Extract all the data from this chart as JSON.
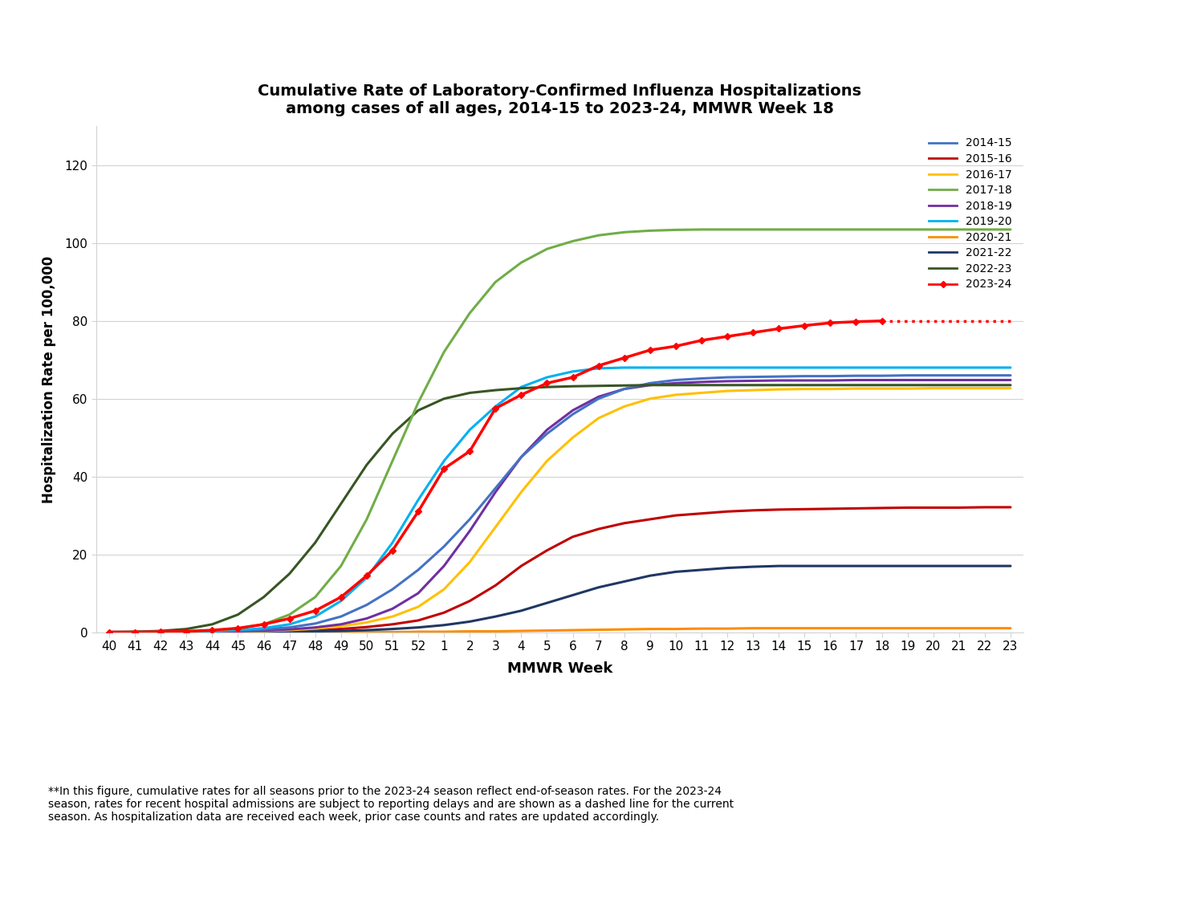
{
  "title_line1": "Cumulative Rate of Laboratory-Confirmed Influenza Hospitalizations",
  "title_line2": "among cases of all ages, 2014-15 to 2023-24, MMWR Week 18",
  "xlabel": "MMWR Week",
  "ylabel": "Hospitalization Rate per 100,000",
  "footnote": "**In this figure, cumulative rates for all seasons prior to the 2023-24 season reflect end-of-season rates. For the 2023-24\nseason, rates for recent hospital admissions are subject to reporting delays and are shown as a dashed line for the current\nseason. As hospitalization data are received each week, prior case counts and rates are updated accordingly.",
  "x_tick_labels": [
    "40",
    "41",
    "42",
    "43",
    "44",
    "45",
    "46",
    "47",
    "48",
    "49",
    "50",
    "51",
    "52",
    "1",
    "2",
    "3",
    "4",
    "5",
    "6",
    "7",
    "8",
    "9",
    "10",
    "11",
    "12",
    "13",
    "14",
    "15",
    "16",
    "17",
    "18",
    "19",
    "20",
    "21",
    "22",
    "23"
  ],
  "ylim": [
    0,
    130
  ],
  "yticks": [
    0,
    20,
    40,
    60,
    80,
    100,
    120
  ],
  "seasons": {
    "2014-15": {
      "color": "#4472C4",
      "values": [
        0.0,
        0.0,
        0.0,
        0.1,
        0.2,
        0.4,
        0.7,
        1.2,
        2.2,
        4.0,
        7.0,
        11.0,
        16.0,
        22.0,
        29.0,
        37.0,
        45.0,
        51.0,
        56.0,
        60.0,
        62.5,
        64.0,
        64.8,
        65.2,
        65.5,
        65.6,
        65.7,
        65.8,
        65.8,
        65.9,
        65.9,
        66.0,
        66.0,
        66.0,
        66.0,
        66.0
      ]
    },
    "2015-16": {
      "color": "#C00000",
      "values": [
        0.0,
        0.0,
        0.0,
        0.0,
        0.1,
        0.1,
        0.2,
        0.3,
        0.5,
        0.8,
        1.3,
        2.0,
        3.0,
        5.0,
        8.0,
        12.0,
        17.0,
        21.0,
        24.5,
        26.5,
        28.0,
        29.0,
        30.0,
        30.5,
        31.0,
        31.3,
        31.5,
        31.6,
        31.7,
        31.8,
        31.9,
        32.0,
        32.0,
        32.0,
        32.1,
        32.1
      ]
    },
    "2016-17": {
      "color": "#FFC000",
      "values": [
        0.0,
        0.0,
        0.0,
        0.0,
        0.1,
        0.2,
        0.3,
        0.5,
        0.9,
        1.5,
        2.5,
        4.0,
        6.5,
        11.0,
        18.0,
        27.0,
        36.0,
        44.0,
        50.0,
        55.0,
        58.0,
        60.0,
        61.0,
        61.5,
        62.0,
        62.2,
        62.4,
        62.5,
        62.5,
        62.6,
        62.6,
        62.6,
        62.7,
        62.7,
        62.7,
        62.7
      ]
    },
    "2017-18": {
      "color": "#70AD47",
      "values": [
        0.0,
        0.0,
        0.1,
        0.2,
        0.4,
        0.9,
        2.0,
        4.5,
        9.0,
        17.0,
        29.0,
        44.0,
        59.0,
        72.0,
        82.0,
        90.0,
        95.0,
        98.5,
        100.5,
        102.0,
        102.8,
        103.2,
        103.4,
        103.5,
        103.5,
        103.5,
        103.5,
        103.5,
        103.5,
        103.5,
        103.5,
        103.5,
        103.5,
        103.5,
        103.5,
        103.5
      ]
    },
    "2018-19": {
      "color": "#7030A0",
      "values": [
        0.0,
        0.0,
        0.0,
        0.0,
        0.1,
        0.2,
        0.4,
        0.7,
        1.2,
        2.0,
        3.5,
        6.0,
        10.0,
        17.0,
        26.0,
        36.0,
        45.0,
        52.0,
        57.0,
        60.5,
        62.5,
        63.5,
        64.0,
        64.3,
        64.5,
        64.6,
        64.7,
        64.7,
        64.7,
        64.8,
        64.8,
        64.8,
        64.8,
        64.8,
        64.8,
        64.8
      ]
    },
    "2019-20": {
      "color": "#00B0F0",
      "values": [
        0.0,
        0.0,
        0.0,
        0.1,
        0.2,
        0.5,
        1.0,
        2.0,
        4.0,
        8.0,
        14.0,
        23.0,
        34.0,
        44.0,
        52.0,
        58.0,
        63.0,
        65.5,
        67.0,
        67.8,
        68.0,
        68.0,
        68.0,
        68.0,
        68.0,
        68.0,
        68.0,
        68.0,
        68.0,
        68.0,
        68.0,
        68.0,
        68.0,
        68.0,
        68.0,
        68.0
      ]
    },
    "2020-21": {
      "color": "#FF8C00",
      "values": [
        0.0,
        0.0,
        0.0,
        0.0,
        0.0,
        0.0,
        0.0,
        0.0,
        0.0,
        0.0,
        0.0,
        0.0,
        0.1,
        0.1,
        0.2,
        0.2,
        0.3,
        0.4,
        0.5,
        0.6,
        0.7,
        0.8,
        0.8,
        0.9,
        0.9,
        1.0,
        1.0,
        1.0,
        1.0,
        1.0,
        1.0,
        1.0,
        1.0,
        1.0,
        1.0,
        1.0
      ]
    },
    "2021-22": {
      "color": "#1F3864",
      "values": [
        0.0,
        0.0,
        0.0,
        0.0,
        0.0,
        0.0,
        0.1,
        0.1,
        0.2,
        0.3,
        0.5,
        0.8,
        1.2,
        1.8,
        2.7,
        4.0,
        5.5,
        7.5,
        9.5,
        11.5,
        13.0,
        14.5,
        15.5,
        16.0,
        16.5,
        16.8,
        17.0,
        17.0,
        17.0,
        17.0,
        17.0,
        17.0,
        17.0,
        17.0,
        17.0,
        17.0
      ]
    },
    "2022-23": {
      "color": "#375623",
      "values": [
        0.0,
        0.1,
        0.3,
        0.8,
        2.0,
        4.5,
        9.0,
        15.0,
        23.0,
        33.0,
        43.0,
        51.0,
        57.0,
        60.0,
        61.5,
        62.2,
        62.7,
        63.0,
        63.2,
        63.3,
        63.4,
        63.5,
        63.5,
        63.5,
        63.5,
        63.5,
        63.5,
        63.5,
        63.5,
        63.5,
        63.5,
        63.5,
        63.5,
        63.5,
        63.5,
        63.5
      ]
    },
    "2023-24": {
      "color": "#FF0000",
      "solid_values": [
        0.0,
        0.0,
        0.1,
        0.2,
        0.5,
        1.0,
        2.0,
        3.5,
        5.5,
        9.0,
        14.5,
        21.0,
        31.0,
        42.0,
        46.5,
        57.5,
        61.0,
        64.0,
        65.5,
        68.5,
        70.5,
        72.5,
        73.5,
        75.0,
        76.0,
        77.0,
        78.0,
        78.8,
        79.5,
        79.8,
        80.0
      ],
      "dashed_values": [
        80.0,
        80.0,
        80.0,
        80.0,
        80.0,
        80.0
      ]
    }
  }
}
